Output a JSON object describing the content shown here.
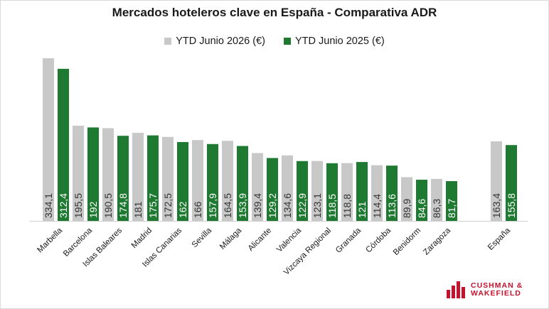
{
  "chart_data": {
    "type": "bar",
    "title": "Mercados hoteleros clave en España - Comparativa ADR",
    "categories": [
      "Marbella",
      "Barcelona",
      "Islas Baleares",
      "Madrid",
      "Islas Canarias",
      "Sevilla",
      "Málaga",
      "Alicante",
      "Valencia",
      "Vizcaya Regional",
      "Granada",
      "Córdoba",
      "Benidorm",
      "Zaragoza",
      "España"
    ],
    "series": [
      {
        "name": "YTD Junio 2026 (€)",
        "color": "#c8c8c8",
        "values": [
          334.1,
          195.5,
          190.5,
          181.0,
          172.5,
          166.0,
          164.5,
          139.4,
          134.6,
          123.1,
          118.8,
          114.4,
          89.9,
          86.3,
          163.4
        ],
        "labels": [
          "334,1",
          "195,5",
          "190,5",
          "181",
          "172,5",
          "166",
          "164,5",
          "139,4",
          "134,6",
          "123,1",
          "118,8",
          "114,4",
          "89,9",
          "86,3",
          "163,4"
        ]
      },
      {
        "name": "YTD Junio 2025 (€)",
        "color": "#1e7a31",
        "values": [
          312.4,
          192.0,
          174.8,
          175.7,
          162.0,
          157.9,
          153.9,
          129.2,
          122.9,
          118.5,
          121.0,
          113.6,
          84.6,
          81.7,
          155.8
        ],
        "labels": [
          "312,4",
          "192",
          "174,8",
          "175,7",
          "162",
          "157,9",
          "153,9",
          "129,2",
          "122,9",
          "118,5",
          "121",
          "113,6",
          "84,6",
          "81,7",
          "155,8"
        ]
      }
    ],
    "ylim": [
      0,
      350
    ],
    "grid": false,
    "legend_position": "top"
  },
  "logo": {
    "line1": "CUSHMAN &",
    "line2": "WAKEFIELD"
  }
}
